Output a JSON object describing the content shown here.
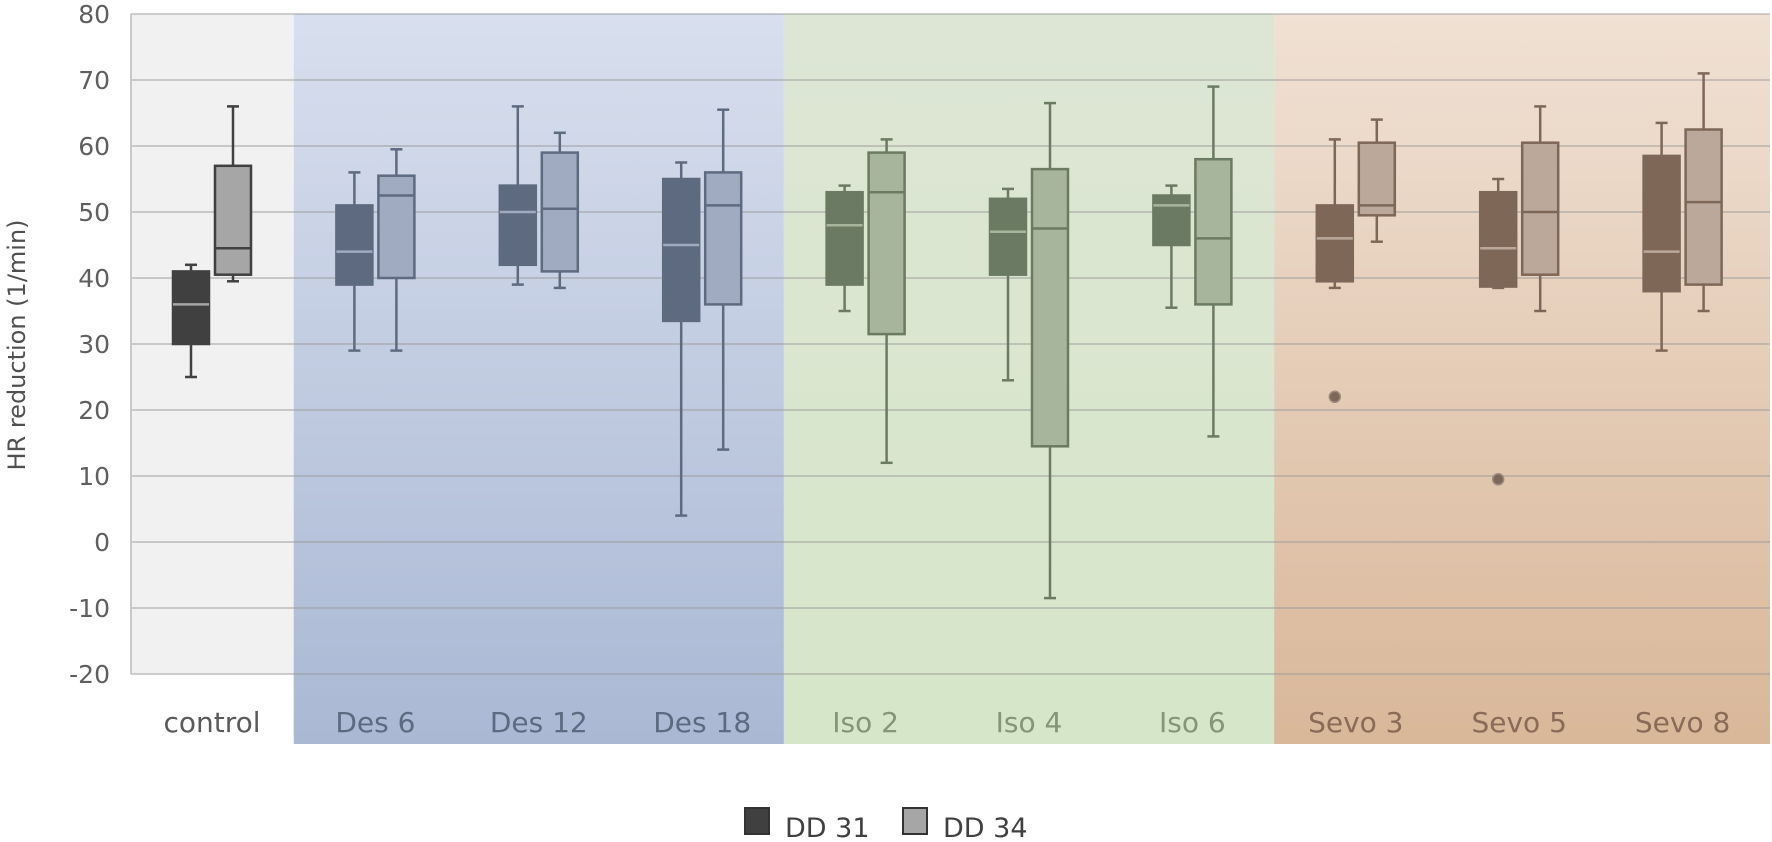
{
  "chart_data": {
    "type": "boxplot",
    "ylabel": "HR reduction (1/min)",
    "ylim": [
      -20,
      80
    ],
    "yticks": [
      -20,
      -10,
      0,
      10,
      20,
      30,
      40,
      50,
      60,
      70,
      80
    ],
    "grid": true,
    "legend_position": "bottom-center",
    "categories": [
      "control",
      "Des 6",
      "Des 12",
      "Des 18",
      "Iso 2",
      "Iso 4",
      "Iso 6",
      "Sevo 3",
      "Sevo 5",
      "Sevo 8"
    ],
    "groups": [
      {
        "name": "control",
        "categories": [
          "control"
        ],
        "bg_top": "#f1f1f1",
        "bg_bottom": "#f1f1f1",
        "box_dark": "#404040",
        "box_light": "#a6a6a6",
        "label_color": "#5a5a5a"
      },
      {
        "name": "Des",
        "categories": [
          "Des 6",
          "Des 12",
          "Des 18"
        ],
        "bg_top": "#d8dfee",
        "bg_bottom": "#aab8d4",
        "box_dark": "#5e6a80",
        "box_light": "#a0aac0",
        "label_color": "#5e6a80"
      },
      {
        "name": "Iso",
        "categories": [
          "Iso 2",
          "Iso 4",
          "Iso 6"
        ],
        "bg_top": "#dde6d5",
        "bg_bottom": "#d6e6c8",
        "box_dark": "#6b7a63",
        "box_light": "#a8b59d",
        "label_color": "#849578"
      },
      {
        "name": "Sevo",
        "categories": [
          "Sevo 3",
          "Sevo 5",
          "Sevo 8"
        ],
        "bg_top": "#f0e1d4",
        "bg_bottom": "#d9b799",
        "box_dark": "#7f6758",
        "box_light": "#bba89b",
        "label_color": "#8b6a58"
      }
    ],
    "series": [
      {
        "name": "DD 31",
        "legend_color": "#404040",
        "boxes": [
          {
            "min": 25,
            "q1": 30,
            "median": 36,
            "q3": 41,
            "max": 42,
            "outliers": []
          },
          {
            "min": 29,
            "q1": 39,
            "median": 44,
            "q3": 51,
            "max": 56,
            "outliers": []
          },
          {
            "min": 39,
            "q1": 42,
            "median": 50,
            "q3": 54,
            "max": 66,
            "outliers": []
          },
          {
            "min": 4,
            "q1": 33.5,
            "median": 45,
            "q3": 55,
            "max": 57.5,
            "outliers": []
          },
          {
            "min": 35,
            "q1": 39,
            "median": 48,
            "q3": 53,
            "max": 54,
            "outliers": []
          },
          {
            "min": 24.5,
            "q1": 40.5,
            "median": 47,
            "q3": 52,
            "max": 53.5,
            "outliers": []
          },
          {
            "min": 35.5,
            "q1": 45,
            "median": 51,
            "q3": 52.5,
            "max": 54,
            "outliers": []
          },
          {
            "min": 38.5,
            "q1": 39.5,
            "median": 46,
            "q3": 51,
            "max": 61,
            "outliers": [
              22
            ]
          },
          {
            "min": 38.5,
            "q1": 38.7,
            "median": 44.5,
            "q3": 53,
            "max": 55,
            "outliers": [
              9.5
            ]
          },
          {
            "min": 29,
            "q1": 38,
            "median": 44,
            "q3": 58.5,
            "max": 63.5,
            "outliers": []
          }
        ]
      },
      {
        "name": "DD 34",
        "legend_color": "#a6a6a6",
        "boxes": [
          {
            "min": 39.5,
            "q1": 40.5,
            "median": 44.5,
            "q3": 57,
            "max": 66,
            "outliers": []
          },
          {
            "min": 29,
            "q1": 40,
            "median": 52.5,
            "q3": 55.5,
            "max": 59.5,
            "outliers": []
          },
          {
            "min": 38.5,
            "q1": 41,
            "median": 50.5,
            "q3": 59,
            "max": 62,
            "outliers": []
          },
          {
            "min": 14,
            "q1": 36,
            "median": 51,
            "q3": 56,
            "max": 65.5,
            "outliers": []
          },
          {
            "min": 12,
            "q1": 31.5,
            "median": 53,
            "q3": 59,
            "max": 61,
            "outliers": []
          },
          {
            "min": -8.5,
            "q1": 14.5,
            "median": 47.5,
            "q3": 56.5,
            "max": 66.5,
            "outliers": []
          },
          {
            "min": 16,
            "q1": 36,
            "median": 46,
            "q3": 58,
            "max": 69,
            "outliers": []
          },
          {
            "min": 45.5,
            "q1": 49.5,
            "median": 51,
            "q3": 60.5,
            "max": 64,
            "outliers": []
          },
          {
            "min": 35,
            "q1": 40.5,
            "median": 50,
            "q3": 60.5,
            "max": 66,
            "outliers": []
          },
          {
            "min": 35,
            "q1": 39,
            "median": 51.5,
            "q3": 62.5,
            "max": 71,
            "outliers": []
          }
        ]
      }
    ]
  },
  "legend": {
    "items": [
      {
        "label": "DD 31",
        "color": "#404040"
      },
      {
        "label": "DD 34",
        "color": "#a6a6a6"
      }
    ]
  }
}
